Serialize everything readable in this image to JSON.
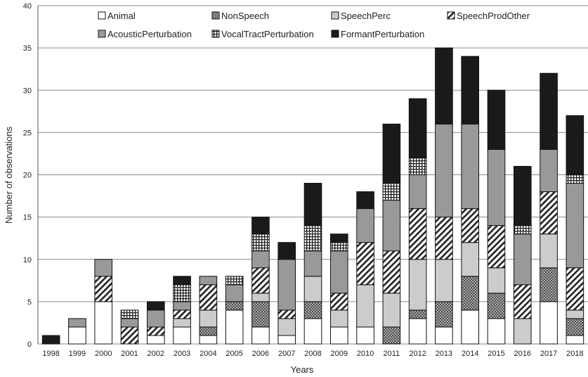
{
  "chart_data": {
    "type": "bar",
    "stacked": true,
    "xlabel": "Years",
    "ylabel": "Number of observations",
    "ylim": [
      0,
      40
    ],
    "yticks": [
      0,
      5,
      10,
      15,
      20,
      25,
      30,
      35,
      40
    ],
    "grid": true,
    "legend_position": "top",
    "categories": [
      "1998",
      "1999",
      "2000",
      "2001",
      "2002",
      "2003",
      "2004",
      "2005",
      "2006",
      "2007",
      "2008",
      "2009",
      "2010",
      "2011",
      "2012",
      "2013",
      "2014",
      "2015",
      "2016",
      "2017",
      "2018"
    ],
    "series": [
      {
        "name": "Animal",
        "pattern": "white",
        "values": [
          0,
          2,
          5,
          0,
          1,
          2,
          1,
          4,
          2,
          1,
          3,
          2,
          2,
          0,
          3,
          2,
          4,
          3,
          0,
          5,
          1
        ]
      },
      {
        "name": "NonSpeech",
        "pattern": "dots",
        "values": [
          0,
          0,
          0,
          0,
          0,
          0,
          1,
          1,
          3,
          0,
          2,
          0,
          0,
          2,
          1,
          3,
          4,
          3,
          0,
          4,
          2
        ]
      },
      {
        "name": "SpeechPerc",
        "pattern": "light-gray",
        "values": [
          0,
          0,
          0,
          0,
          0,
          1,
          2,
          0,
          1,
          2,
          3,
          2,
          5,
          4,
          6,
          5,
          4,
          3,
          3,
          4,
          1
        ]
      },
      {
        "name": "SpeechProdOther",
        "pattern": "diagonal",
        "values": [
          0,
          0,
          3,
          2,
          1,
          1,
          3,
          0,
          3,
          1,
          0,
          2,
          5,
          5,
          6,
          5,
          4,
          5,
          4,
          5,
          5
        ]
      },
      {
        "name": "AcousticPerturbation",
        "pattern": "gray",
        "values": [
          0,
          1,
          2,
          1,
          2,
          1,
          1,
          2,
          2,
          6,
          3,
          5,
          4,
          6,
          4,
          11,
          10,
          9,
          6,
          5,
          10
        ]
      },
      {
        "name": "VocalTractPerturbation",
        "pattern": "grid",
        "values": [
          0,
          0,
          0,
          1,
          0,
          2,
          0,
          1,
          2,
          0,
          3,
          1,
          0,
          2,
          2,
          0,
          0,
          0,
          1,
          0,
          1
        ]
      },
      {
        "name": "FormantPerturbation",
        "pattern": "black",
        "values": [
          1,
          0,
          0,
          0,
          1,
          1,
          0,
          0,
          2,
          2,
          5,
          1,
          2,
          7,
          7,
          9,
          8,
          7,
          7,
          9,
          7
        ]
      }
    ]
  }
}
